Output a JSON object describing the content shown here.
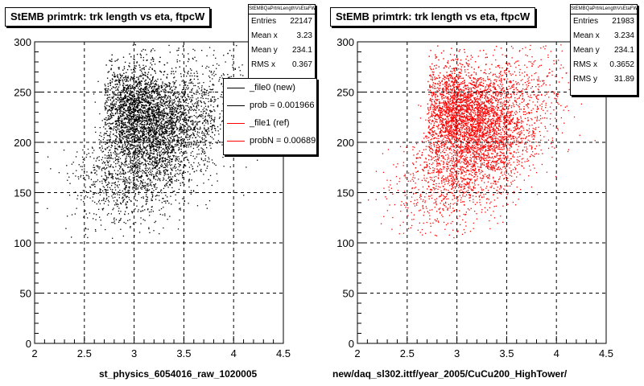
{
  "chart_data": [
    {
      "type": "scatter",
      "title": "StEMB primtrk: trk length vs eta, ftpcW",
      "xlabel": "st_physics_6054016_raw_1020005",
      "ylabel": "",
      "xlim": [
        2,
        4.5
      ],
      "ylim": [
        0,
        300
      ],
      "x_ticks": [
        "2",
        "2.5",
        "3",
        "3.5",
        "4",
        "4.5"
      ],
      "y_ticks": [
        "0",
        "50",
        "100",
        "150",
        "200",
        "250",
        "300"
      ],
      "grid": true,
      "marker_color": "#000000",
      "stats": {
        "name": "StEMBQaPrtrkLengthVsEtaFW",
        "rows": [
          {
            "label": "Entries",
            "value": "22147"
          },
          {
            "label": "Mean x",
            "value": "3.23"
          },
          {
            "label": "Mean y",
            "value": "234.1"
          },
          {
            "label": "RMS x",
            "value": "0.367"
          }
        ]
      },
      "legend": {
        "placement": "right",
        "entries": [
          {
            "label": "_file0 (new)",
            "color": "#000000"
          },
          {
            "label": "prob = 0.001966",
            "color": "#000000"
          },
          {
            "label": "_file1 (ref)",
            "color": "#ff0000"
          },
          {
            "label": "probN = 0.00689",
            "color": "#ff0000"
          }
        ]
      }
    },
    {
      "type": "scatter",
      "title": "StEMB primtrk: trk length vs eta, ftpcW",
      "xlabel": "new/daq_sl302.ittf/year_2005/CuCu200_HighTower/",
      "ylabel": "",
      "xlim": [
        2,
        4.5
      ],
      "ylim": [
        0,
        300
      ],
      "x_ticks": [
        "2",
        "2.5",
        "3",
        "3.5",
        "4",
        "4.5"
      ],
      "y_ticks": [
        "0",
        "50",
        "100",
        "150",
        "200",
        "250",
        "300"
      ],
      "grid": true,
      "marker_color": "#ff0000",
      "stats": {
        "name": "StEMBQaPrtrkLengthVsEtaFW",
        "rows": [
          {
            "label": "Entries",
            "value": "21983"
          },
          {
            "label": "Mean x",
            "value": "3.234"
          },
          {
            "label": "Mean y",
            "value": "234.1"
          },
          {
            "label": "RMS x",
            "value": "0.3652"
          },
          {
            "label": "RMS y",
            "value": "31.89"
          }
        ]
      }
    }
  ]
}
